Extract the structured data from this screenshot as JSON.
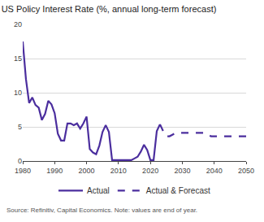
{
  "chart_data": {
    "type": "line",
    "title": "US Policy Interest Rate (%, annual long-term forecast)",
    "annotations": [
      "Source: Refinitiv, Capital Economics. Note: values are end of year."
    ],
    "x": [
      1980,
      1981,
      1982,
      1983,
      1984,
      1985,
      1986,
      1987,
      1988,
      1989,
      1990,
      1991,
      1992,
      1993,
      1994,
      1995,
      1996,
      1997,
      1998,
      1999,
      2000,
      2001,
      2002,
      2003,
      2004,
      2005,
      2006,
      2007,
      2008,
      2009,
      2010,
      2011,
      2012,
      2013,
      2014,
      2015,
      2016,
      2017,
      2018,
      2019,
      2020,
      2021,
      2022,
      2023,
      2024,
      2025,
      2026,
      2027,
      2028,
      2029,
      2030,
      2031,
      2032,
      2033,
      2034,
      2035,
      2036,
      2037,
      2038,
      2039,
      2040,
      2041,
      2042,
      2043,
      2044,
      2045,
      2046,
      2047,
      2048,
      2049,
      2050
    ],
    "series": [
      {
        "name": "Actual",
        "color": "#4b2e9e",
        "line_style": "solid",
        "values": [
          17.5,
          12.0,
          8.5,
          9.3,
          8.2,
          7.8,
          6.0,
          6.9,
          8.8,
          8.3,
          7.0,
          4.0,
          3.0,
          3.0,
          5.5,
          5.5,
          5.25,
          5.5,
          4.75,
          5.5,
          6.5,
          1.75,
          1.25,
          1.0,
          2.25,
          4.25,
          5.25,
          4.25,
          0.125,
          0.125,
          0.125,
          0.125,
          0.125,
          0.125,
          0.125,
          0.375,
          0.625,
          1.375,
          2.375,
          1.625,
          0.125,
          0.125,
          4.375,
          5.375,
          null,
          null,
          null,
          null,
          null,
          null,
          null,
          null,
          null,
          null,
          null,
          null,
          null,
          null,
          null,
          null,
          null,
          null,
          null,
          null,
          null,
          null,
          null,
          null,
          null,
          null,
          null
        ]
      },
      {
        "name": "Actual & Forecast",
        "color": "#4b2e9e",
        "line_style": "dashed",
        "values": [
          null,
          null,
          null,
          null,
          null,
          null,
          null,
          null,
          null,
          null,
          null,
          null,
          null,
          null,
          null,
          null,
          null,
          null,
          null,
          null,
          null,
          null,
          null,
          null,
          null,
          null,
          null,
          null,
          null,
          null,
          null,
          null,
          null,
          null,
          null,
          null,
          null,
          null,
          null,
          null,
          null,
          null,
          null,
          5.375,
          4.375,
          3.625,
          3.625,
          3.875,
          4.125,
          4.125,
          4.125,
          4.125,
          4.125,
          4.125,
          4.125,
          4.125,
          4.125,
          4.125,
          3.875,
          3.625,
          3.625,
          3.625,
          3.625,
          3.625,
          3.625,
          3.625,
          3.625,
          3.625,
          3.625,
          3.625,
          3.625
        ]
      }
    ],
    "xlim": [
      1980,
      2050
    ],
    "xticks": [
      1980,
      1990,
      2000,
      2010,
      2020,
      2030,
      2040,
      2050
    ],
    "ylim": [
      0,
      20
    ],
    "yticks": [
      0,
      5,
      10,
      15,
      20
    ],
    "grid": true,
    "legend": "bottom"
  }
}
